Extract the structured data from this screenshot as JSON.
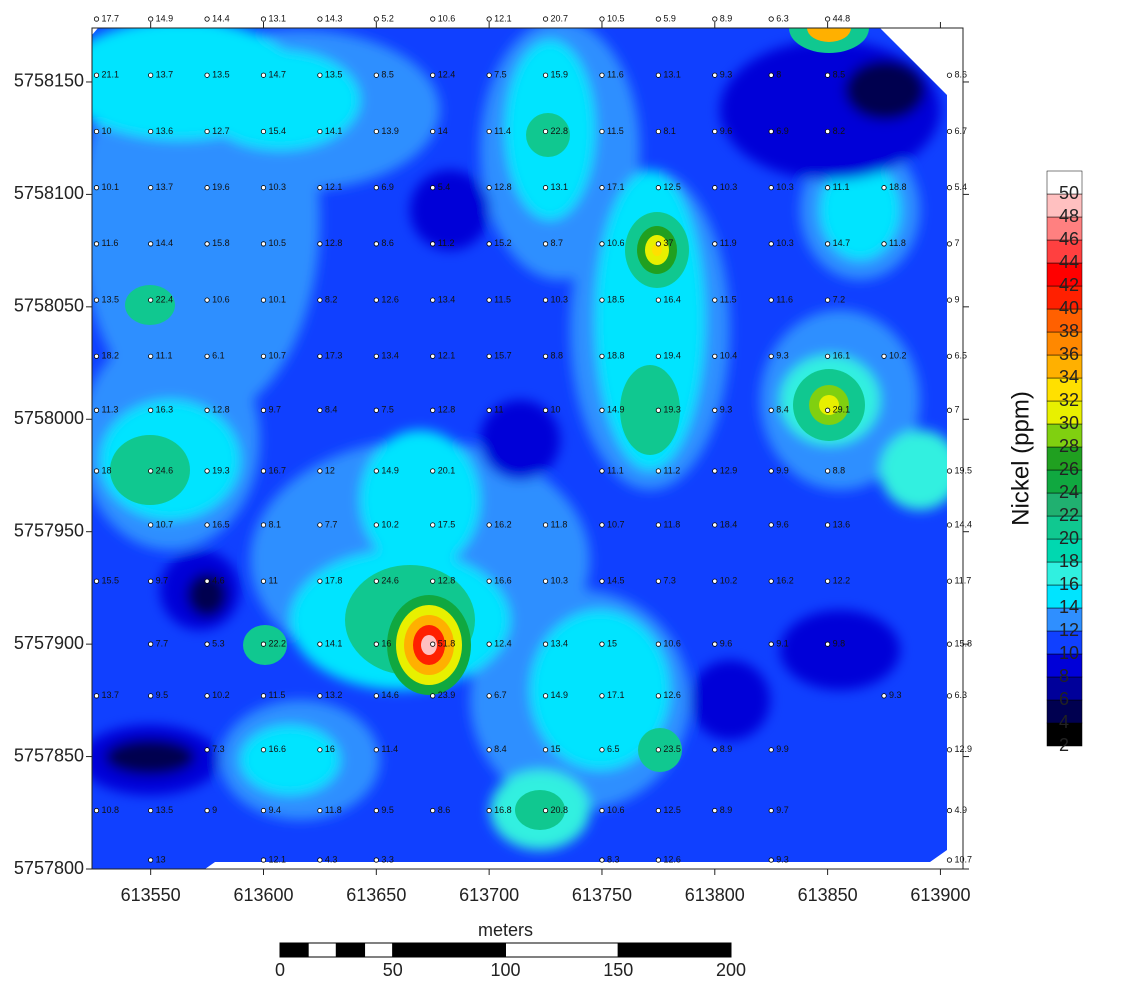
{
  "chart_data": {
    "type": "contour-map",
    "xlim": [
      613524,
      613910
    ],
    "ylim": [
      5757800,
      5758174
    ],
    "xticks": [
      613550,
      613600,
      613650,
      613700,
      613750,
      613800,
      613850,
      613900
    ],
    "yticks": [
      5757800,
      5757850,
      5757900,
      5757950,
      5758000,
      5758050,
      5758100,
      5758150
    ],
    "colorbar": {
      "title": "Nickel (ppm)",
      "levels": [
        2,
        4,
        6,
        8,
        10,
        12,
        14,
        16,
        18,
        20,
        22,
        24,
        26,
        28,
        30,
        32,
        34,
        36,
        38,
        40,
        42,
        44,
        46,
        48,
        50
      ],
      "colors": [
        "#000000",
        "#000050",
        "#00009a",
        "#0000d8",
        "#1040ff",
        "#2f8fff",
        "#00e4ff",
        "#30f0e0",
        "#00d8b0",
        "#10c890",
        "#20b070",
        "#10a840",
        "#20a020",
        "#80d010",
        "#e8f000",
        "#ffe000",
        "#ffb000",
        "#ff8800",
        "#ff6000",
        "#ff2000",
        "#ff0000",
        "#ff4040",
        "#ff8080",
        "#ffc0c0",
        "#ffffff"
      ]
    },
    "scale_bar": {
      "title": "meters",
      "ticks": [
        0,
        50,
        100,
        150,
        200
      ]
    },
    "samples": {
      "easting": [
        613526,
        613550,
        613575,
        613600,
        613625,
        613650,
        613675,
        613700,
        613725,
        613750,
        613775,
        613800,
        613825,
        613850,
        613875,
        613904
      ],
      "rows": [
        {
          "northing": 5758178,
          "values": [
            17.7,
            14.9,
            14.4,
            13.1,
            14.3,
            5.2,
            10.6,
            12.1,
            20.7,
            10.5,
            5.9,
            8.9,
            6.3,
            44.8,
            null,
            null
          ]
        },
        {
          "northing": 5758153,
          "values": [
            21.1,
            13.7,
            13.5,
            14.7,
            13.5,
            8.5,
            12.4,
            7.5,
            15.9,
            11.6,
            13.1,
            9.3,
            8.0,
            8.5,
            null,
            8.6
          ]
        },
        {
          "northing": 5758128,
          "values": [
            10,
            13.6,
            12.7,
            15.4,
            14.1,
            13.9,
            14,
            11.4,
            22.8,
            11.5,
            8.1,
            9.6,
            6.9,
            8.2,
            null,
            6.7
          ]
        },
        {
          "northing": 5758103,
          "values": [
            10.1,
            13.7,
            19.6,
            10.3,
            12.1,
            6.9,
            5.4,
            12.8,
            13.1,
            17.1,
            12.5,
            10.3,
            10.3,
            11.1,
            18.8,
            5.4
          ]
        },
        {
          "northing": 5758078,
          "values": [
            11.6,
            14.4,
            15.8,
            10.5,
            12.8,
            8.6,
            11.2,
            15.2,
            8.7,
            10.6,
            37,
            11.9,
            10.3,
            14.7,
            11.8,
            7
          ]
        },
        {
          "northing": 5758053,
          "values": [
            13.5,
            22.4,
            10.6,
            10.1,
            8.2,
            12.6,
            13.4,
            11.5,
            10.3,
            18.5,
            16.4,
            11.5,
            11.6,
            7.2,
            null,
            9
          ]
        },
        {
          "northing": 5758028,
          "values": [
            18.2,
            11.1,
            6.1,
            10.7,
            17.3,
            13.4,
            12.1,
            15.7,
            8.8,
            18.8,
            19.4,
            10.4,
            9.3,
            16.1,
            10.2,
            6.5
          ]
        },
        {
          "northing": 5758004,
          "values": [
            11.3,
            16.3,
            12.8,
            9.7,
            8.4,
            7.5,
            12.8,
            11,
            10,
            14.9,
            19.3,
            9.3,
            8.4,
            29.1,
            null,
            7
          ]
        },
        {
          "northing": 5757977,
          "values": [
            18,
            24.6,
            19.3,
            16.7,
            12,
            14.9,
            20.1,
            null,
            null,
            11.1,
            11.2,
            12.9,
            9.9,
            8.8,
            null,
            19.5
          ]
        },
        {
          "northing": 5757953,
          "values": [
            null,
            10.7,
            16.5,
            8.1,
            7.7,
            10.2,
            17.5,
            16.2,
            11.8,
            10.7,
            11.8,
            18.4,
            9.6,
            13.6,
            null,
            14.4
          ]
        },
        {
          "northing": 5757928,
          "values": [
            15.5,
            9.7,
            4.6,
            11,
            17.8,
            24.6,
            12.8,
            16.6,
            10.3,
            14.5,
            7.3,
            10.2,
            16.2,
            12.2,
            null,
            11.7
          ]
        },
        {
          "northing": 5757900,
          "values": [
            null,
            7.7,
            5.3,
            22.2,
            14.1,
            16,
            51.8,
            12.4,
            13.4,
            15,
            10.6,
            9.6,
            9.1,
            9.8,
            null,
            15.8
          ]
        },
        {
          "northing": 5757877,
          "values": [
            13.7,
            9.5,
            10.2,
            11.5,
            13.2,
            14.6,
            23.9,
            6.7,
            14.9,
            17.1,
            12.6,
            null,
            null,
            null,
            9.3,
            6.3
          ]
        },
        {
          "northing": 5757853,
          "values": [
            null,
            null,
            7.3,
            16.6,
            16,
            11.4,
            null,
            8.4,
            15,
            6.5,
            23.5,
            8.9,
            9.9,
            null,
            null,
            12.9
          ]
        },
        {
          "northing": 5757826,
          "values": [
            10.8,
            13.5,
            9,
            9.4,
            11.8,
            9.5,
            8.6,
            16.8,
            20.8,
            10.6,
            12.5,
            8.9,
            9.7,
            null,
            null,
            4.9
          ]
        },
        {
          "northing": 5757804,
          "values": [
            null,
            13,
            null,
            12.1,
            4.3,
            3.3,
            null,
            null,
            null,
            8.3,
            12.6,
            null,
            9.3,
            null,
            null,
            10.7
          ]
        }
      ]
    }
  }
}
